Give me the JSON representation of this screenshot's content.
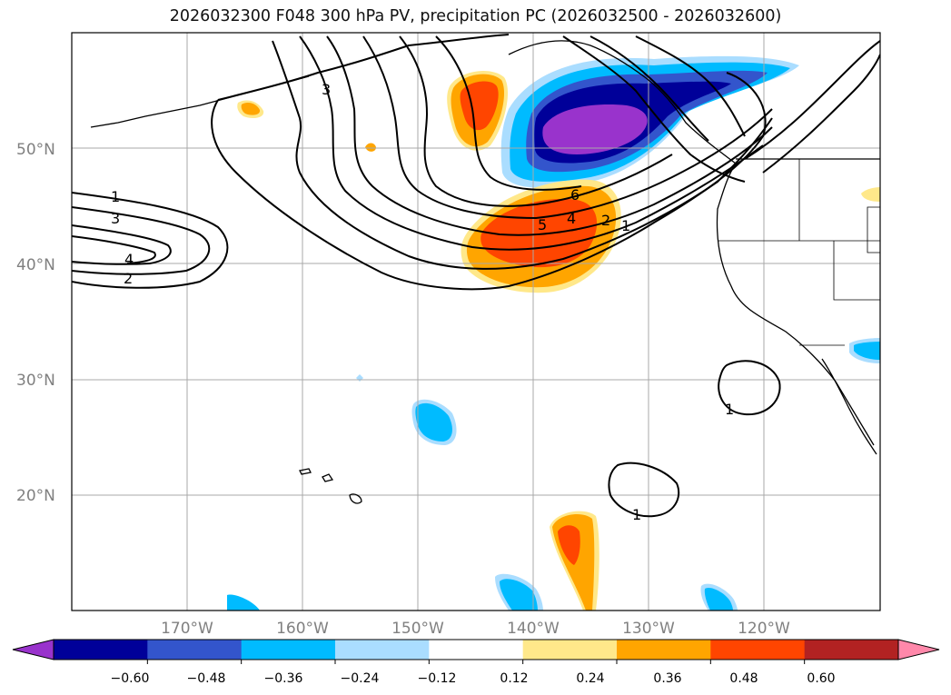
{
  "title": "2026032300 F048 300 hPa PV, precipitation PC (2026032500 - 2026032600)",
  "latitude_labels": [
    "50°N",
    "40°N",
    "30°N",
    "20°N"
  ],
  "longitude_labels": [
    "170°W",
    "160°W",
    "150°W",
    "140°W",
    "130°W",
    "120°W"
  ],
  "colorbar": {
    "colors": [
      "#9933cc",
      "#000099",
      "#3355cc",
      "#00bbff",
      "#aaddff",
      "#ffffff",
      "#ffe88a",
      "#ffa500",
      "#ff4500",
      "#b22222",
      "#ff88aa"
    ],
    "tick_labels": [
      "−0.60",
      "−0.48",
      "−0.36",
      "−0.24",
      "−0.12",
      "0.12",
      "0.24",
      "0.36",
      "0.48",
      "0.60"
    ]
  },
  "contour_labels": [
    "1",
    "3",
    "4",
    "2",
    "3",
    "6",
    "5",
    "4",
    "2",
    "1",
    "1",
    "1"
  ]
}
